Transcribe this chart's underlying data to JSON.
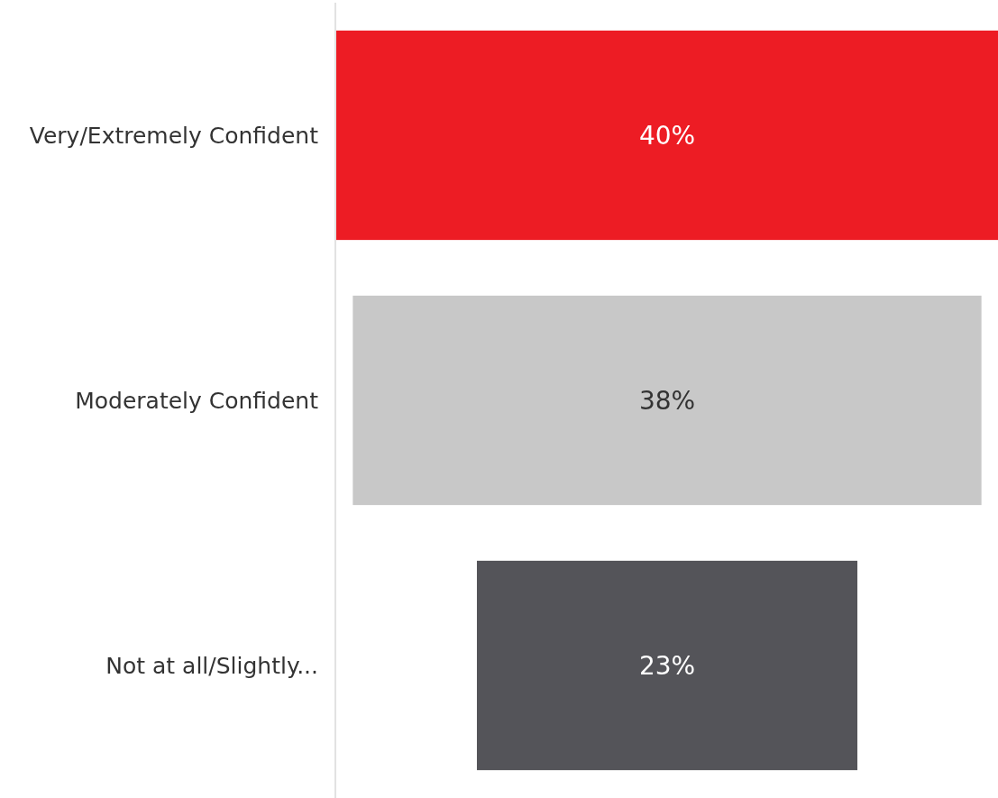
{
  "chart_data": {
    "type": "other",
    "categories": [
      "Very/Extremely Confident",
      "Moderately Confident",
      "Not at all/Slightly..."
    ],
    "values": [
      40,
      38,
      23
    ],
    "colors": [
      "#ed1c24",
      "#c8c8c8",
      "#545459"
    ],
    "value_labels": [
      "40%",
      "38%",
      "23%"
    ]
  }
}
